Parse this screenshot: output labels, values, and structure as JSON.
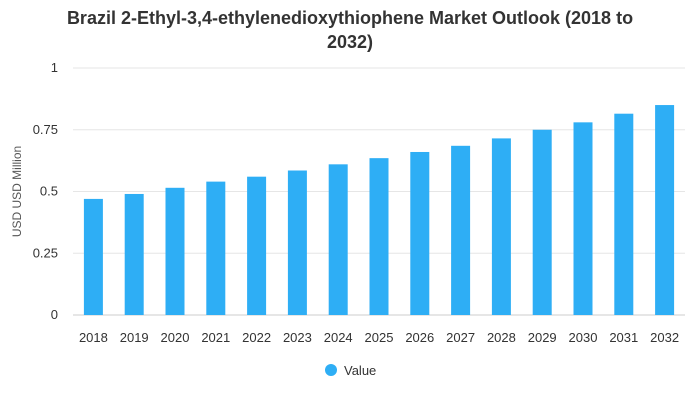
{
  "chart_data": {
    "type": "bar",
    "title_line1": "Brazil 2-Ethyl-3,4-ethylenedioxythiophene Market Outlook (2018 to",
    "title_line2": "2032)",
    "ylabel": "USD USD Million",
    "categories": [
      "2018",
      "2019",
      "2020",
      "2021",
      "2022",
      "2023",
      "2024",
      "2025",
      "2026",
      "2027",
      "2028",
      "2029",
      "2030",
      "2031",
      "2032"
    ],
    "series": [
      {
        "name": "Value",
        "color": "#2EAEF5",
        "values": [
          0.47,
          0.49,
          0.515,
          0.54,
          0.56,
          0.585,
          0.61,
          0.635,
          0.66,
          0.685,
          0.715,
          0.75,
          0.78,
          0.815,
          0.85
        ]
      }
    ],
    "ylim": [
      0,
      1
    ],
    "yticks": [
      "0",
      "0.25",
      "0.5",
      "0.75",
      "1"
    ],
    "grid": true,
    "legend_position": "bottom-center"
  }
}
